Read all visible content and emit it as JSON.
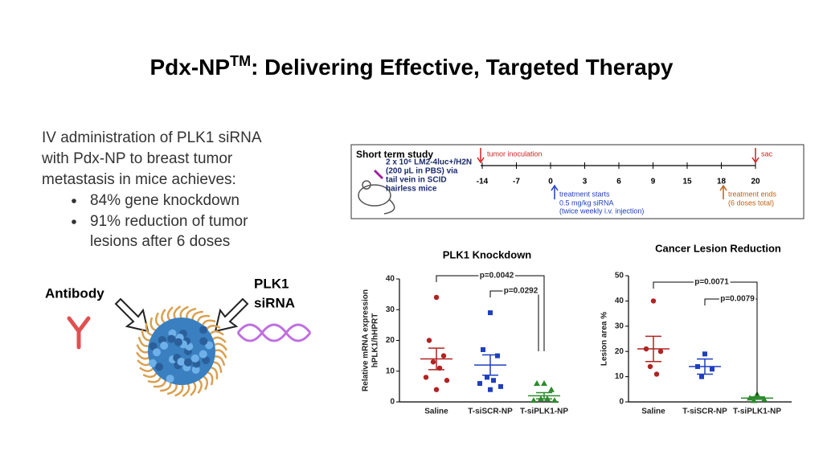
{
  "title": {
    "main": "Pdx-NP",
    "sup": "TM",
    "rest": ": Delivering Effective, Targeted Therapy"
  },
  "intro": [
    "IV administration of PLK1 siRNA",
    "with Pdx-NP to breast tumor",
    "metastasis in mice achieves:"
  ],
  "bullets": [
    [
      "84% gene knockdown"
    ],
    [
      "91% reduction of tumor",
      "lesions after 6 doses"
    ]
  ],
  "diagram": {
    "antibody": "Antibody",
    "sirna": [
      "PLK1",
      "siRNA"
    ]
  },
  "timeline": {
    "title": "Short term study",
    "mouse_text": [
      "2 x 10⁶ LM2-4luc+/H2N",
      "(200 µL in PBS)  via",
      "tail vein in SCID",
      "hairless mice"
    ],
    "days": [
      -14,
      -7,
      0,
      3,
      6,
      9,
      15,
      18,
      20
    ],
    "inoculation": "tumor inoculation",
    "sac": "sac",
    "start": [
      "treatment starts",
      "0.5 mg/kg siRNA",
      "(twice weekly i.v. injection)"
    ],
    "end": [
      "treatment ends",
      "(6 doses total)"
    ]
  },
  "chart_data": [
    {
      "type": "dot",
      "title": "PLK1 Knockdown",
      "ylabel": [
        "Relative mRNA expression",
        "hPLK1/hHPRT"
      ],
      "ylim": [
        0,
        40
      ],
      "yticks": [
        0,
        10,
        20,
        30,
        40
      ],
      "groups": [
        {
          "name": "Saline",
          "color": "#b22222",
          "marker": "circle",
          "values": [
            34,
            20,
            15,
            13,
            11,
            8,
            7,
            4
          ],
          "mean": 14,
          "sem": 3.5
        },
        {
          "name": "T-siSCR-NP",
          "color": "#1f3fbf",
          "marker": "square",
          "values": [
            29,
            17,
            15,
            8,
            7,
            6,
            5,
            4
          ],
          "mean": 12,
          "sem": 3.3
        },
        {
          "name": "T-siPLK1-NP",
          "color": "#2e8b2e",
          "marker": "triangle",
          "values": [
            6,
            6,
            4,
            1,
            1,
            0.5,
            0.5
          ],
          "mean": 2,
          "sem": 1
        }
      ],
      "annotations": [
        "p=0.0042",
        "p=0.0292"
      ]
    },
    {
      "type": "dot",
      "title": "Cancer Lesion Reduction",
      "ylabel": [
        "Lesion area %"
      ],
      "ylim": [
        0,
        50
      ],
      "yticks": [
        0,
        10,
        20,
        30,
        40,
        50
      ],
      "groups": [
        {
          "name": "Saline",
          "color": "#b22222",
          "marker": "circle",
          "values": [
            40,
            21,
            20,
            14,
            11
          ],
          "mean": 21,
          "sem": 5
        },
        {
          "name": "T-siSCR-NP",
          "color": "#1f3fbf",
          "marker": "square",
          "values": [
            19,
            14,
            13,
            10
          ],
          "mean": 14,
          "sem": 3
        },
        {
          "name": "T-siPLK1-NP",
          "color": "#2e8b2e",
          "marker": "triangle",
          "values": [
            3,
            1.5,
            1,
            0.5
          ],
          "mean": 1.5,
          "sem": 0.5
        }
      ],
      "annotations": [
        "p=0.0071",
        "p=0.0079"
      ]
    }
  ]
}
